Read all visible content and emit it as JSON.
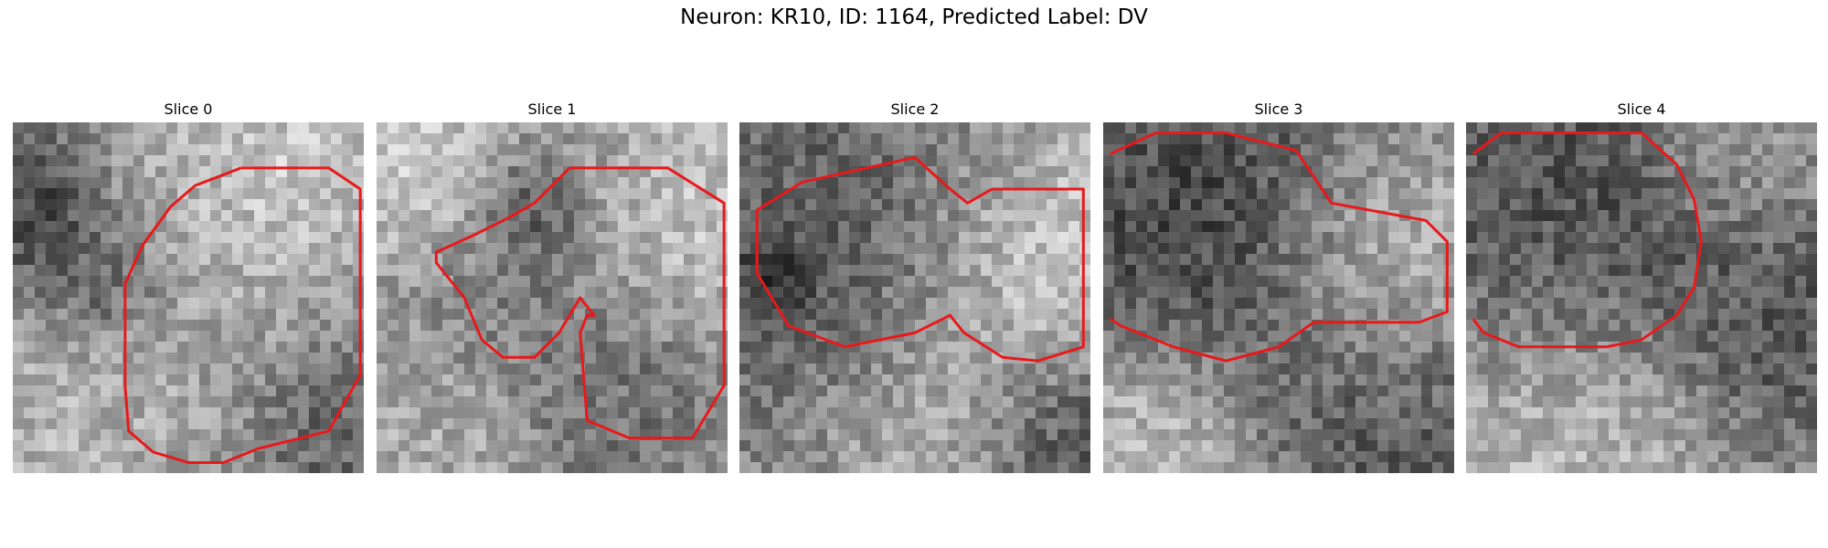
{
  "figure": {
    "title": "Neuron: KR10, ID: 1164, Predicted Label: DV"
  },
  "slices": [
    {
      "label": "Slice 0"
    },
    {
      "label": "Slice 1"
    },
    {
      "label": "Slice 2"
    },
    {
      "label": "Slice 3"
    },
    {
      "label": "Slice 4"
    }
  ],
  "colors": {
    "contour": "#e8191b",
    "background": "#ffffff"
  }
}
